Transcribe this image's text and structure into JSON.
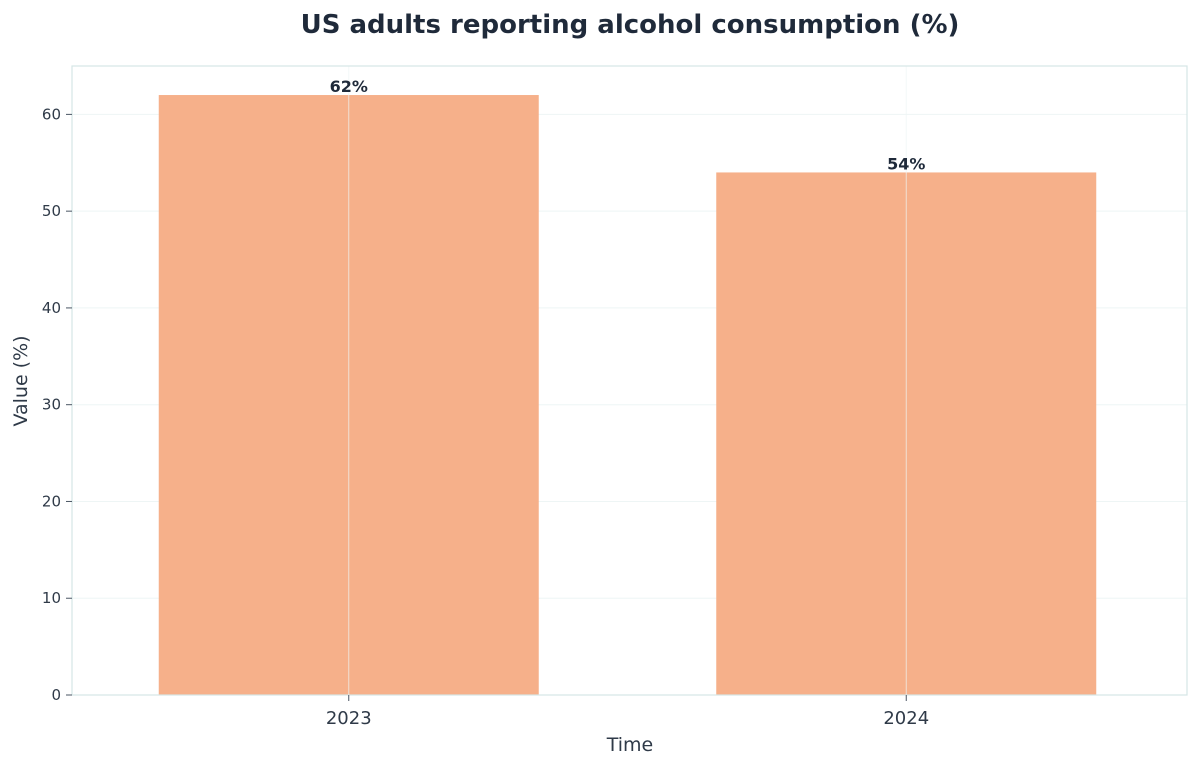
{
  "chart_data": {
    "type": "bar",
    "title": "US adults reporting alcohol consumption (%)",
    "xlabel": "Time",
    "ylabel": "Value (%)",
    "categories": [
      "2023",
      "2024"
    ],
    "values": [
      62,
      54
    ],
    "data_labels": [
      "62%",
      "54%"
    ],
    "ylim": [
      0,
      65
    ],
    "yticks": [
      0,
      10,
      20,
      30,
      40,
      50,
      60
    ],
    "ytick_labels": [
      "0",
      "10",
      "20",
      "30",
      "40",
      "50",
      "60"
    ],
    "grid": true,
    "bar_color": "#f6b08a",
    "axis_color": "#d6e6e6",
    "grid_color": "#eef5f5"
  }
}
